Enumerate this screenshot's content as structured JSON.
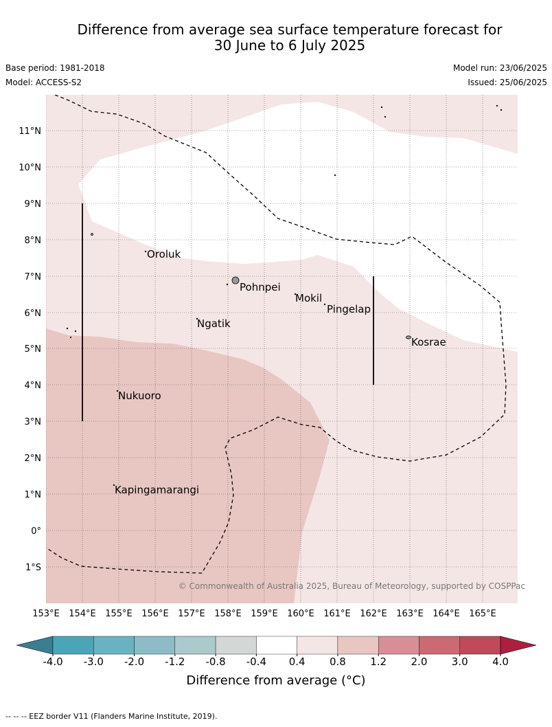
{
  "title_line1": "Difference from average sea surface temperature forecast for",
  "title_line2": "30 June to 6 July 2025",
  "base_period": "Base period: 1981-2018",
  "model": "Model: ACCESS-S2",
  "model_run": "Model run: 23/06/2025",
  "issued": "Issued: 25/06/2025",
  "copyright": "© Commonwealth of Australia 2025, Bureau of Meteorology, supported by COSPPac",
  "lat_labels": [
    "11°N",
    "10°N",
    "9°N",
    "8°N",
    "7°N",
    "6°N",
    "5°N",
    "4°N",
    "3°N",
    "2°N",
    "1°N",
    "0°",
    "1°S"
  ],
  "lon_labels": [
    "153°E",
    "154°E",
    "155°E",
    "156°E",
    "157°E",
    "158°E",
    "159°E",
    "160°E",
    "161°E",
    "162°E",
    "163°E",
    "164°E",
    "165°E"
  ],
  "places": [
    {
      "name": "Oroluk"
    },
    {
      "name": "Pohnpei"
    },
    {
      "name": "Mokil"
    },
    {
      "name": "Pingelap"
    },
    {
      "name": "Ngatik"
    },
    {
      "name": "Kosrae"
    },
    {
      "name": "Nukuoro"
    },
    {
      "name": "Kapingamarangi"
    }
  ],
  "colorbar": {
    "tick_labels": [
      "-4.0",
      "-3.0",
      "-2.0",
      "-1.2",
      "-0.8",
      "-0.4",
      "0.4",
      "0.8",
      "1.2",
      "2.0",
      "3.0",
      "4.0"
    ],
    "colors": [
      "#3a7f91",
      "#4aa6b6",
      "#6bb2c1",
      "#8dbcc7",
      "#acc9cc",
      "#d3d7d6",
      "#ffffff",
      "#f5e6e6",
      "#e8c7c3",
      "#d88e96",
      "#cc6a74",
      "#c04a59",
      "#ac1f3f"
    ],
    "title": "Difference from average ($^\\circ$C)",
    "title_display": "Difference from average (°C)"
  },
  "footnote": "-- -- -- EEZ border V11 (Flanders Marine Institute, 2019)."
}
